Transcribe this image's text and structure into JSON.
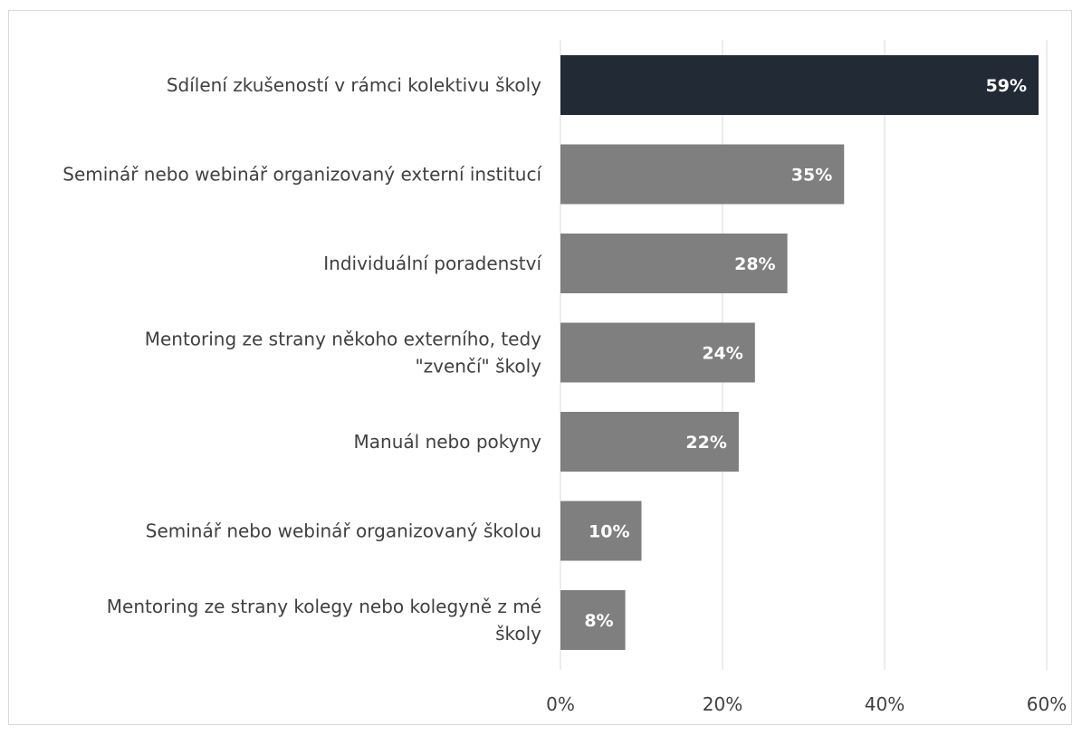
{
  "chart_data": {
    "type": "bar",
    "orientation": "horizontal",
    "title": "",
    "xlabel": "",
    "ylabel": "",
    "xlim": [
      0,
      60
    ],
    "ticks": [
      0,
      20,
      40,
      60
    ],
    "tick_labels": [
      "0%",
      "20%",
      "40%",
      "60%"
    ],
    "grid": "vertical",
    "legend": "none",
    "categories": [
      "Sdílení zkušeností v rámci kolektivu školy",
      "Seminář nebo webinář organizovaný externí institucí",
      "Individuální poradenství",
      "Mentoring ze strany někoho externího, tedy \"zvenčí\" školy",
      "Manuál nebo pokyny",
      "Seminář nebo webinář organizovaný školou",
      "Mentoring ze strany kolegy nebo kolegyně z mé školy"
    ],
    "category_lines": [
      [
        "Sdílení zkušeností v rámci kolektivu školy"
      ],
      [
        "Seminář nebo webinář organizovaný externí institucí"
      ],
      [
        "Individuální poradenství"
      ],
      [
        "Mentoring ze strany někoho externího, tedy",
        "\"zvenčí\" školy"
      ],
      [
        "Manuál nebo pokyny"
      ],
      [
        "Seminář nebo webinář organizovaný školou"
      ],
      [
        "Mentoring ze strany kolegy nebo kolegyně z mé",
        "školy"
      ]
    ],
    "values": [
      59,
      35,
      28,
      24,
      22,
      10,
      8
    ],
    "value_labels": [
      "59%",
      "35%",
      "28%",
      "24%",
      "22%",
      "10%",
      "8%"
    ],
    "colors": {
      "highlight": "#222a35",
      "default": "#7f7f7f",
      "grid": "#d9d9d9",
      "text": "#404040",
      "value_text": "#ffffff"
    }
  }
}
